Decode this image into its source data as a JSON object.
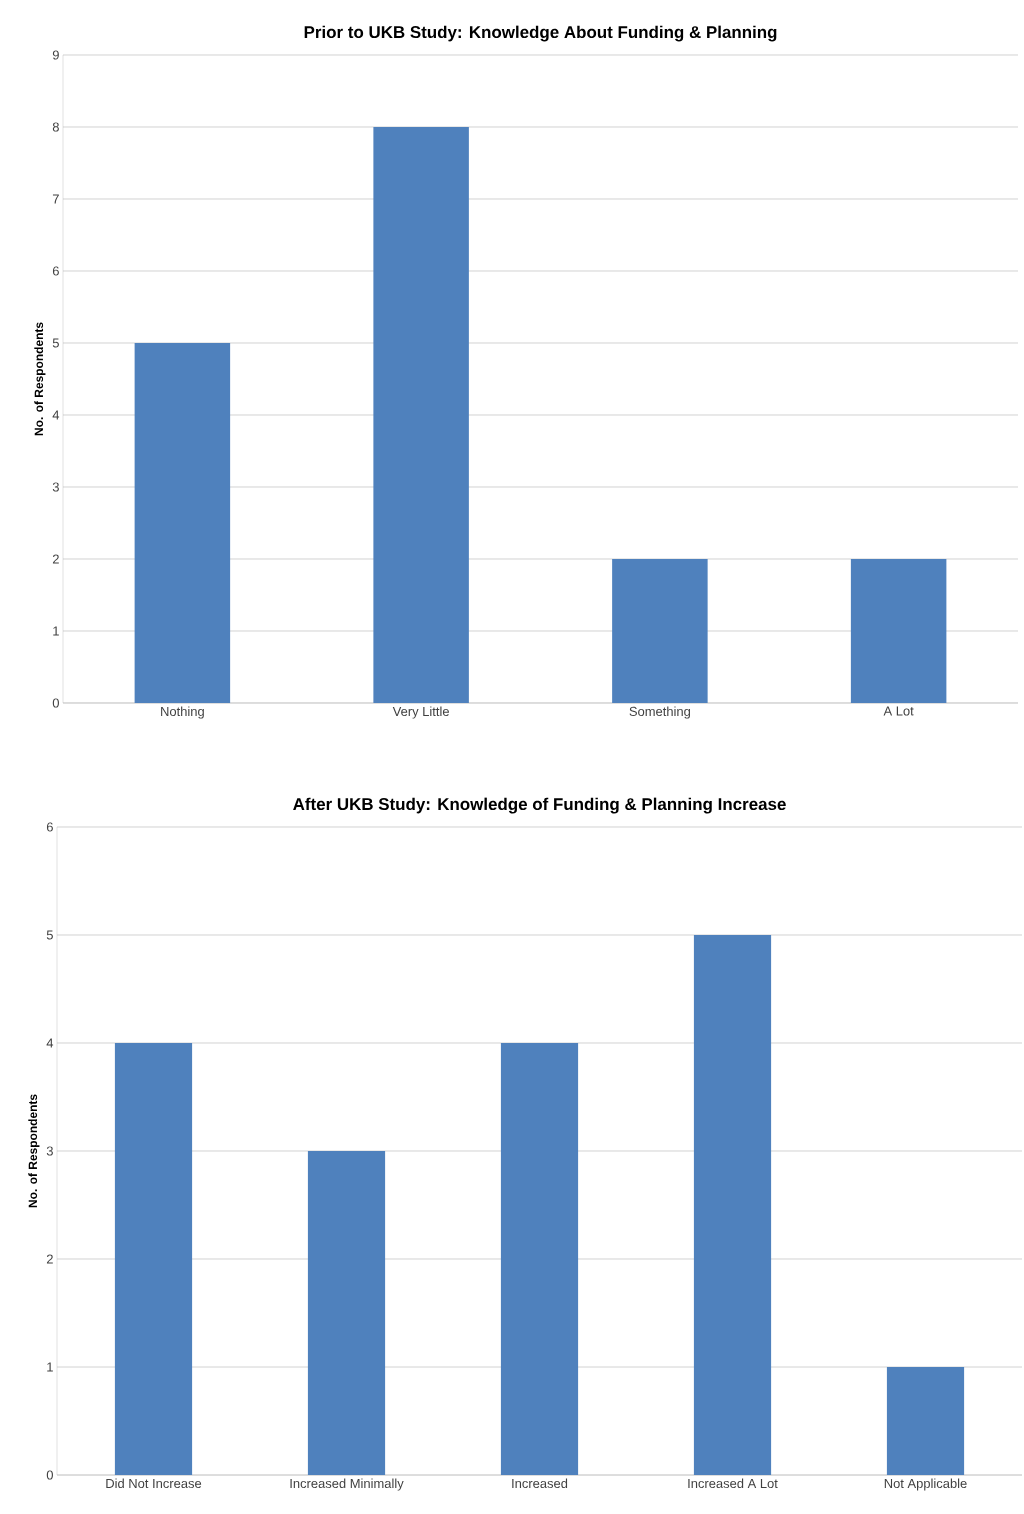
{
  "chart_data": [
    {
      "type": "bar",
      "title": "Prior to UKB Study: Knowledge About Funding & Planning",
      "ylabel": "No. of Respondents",
      "categories": [
        "Nothing",
        "Very Little",
        "Something",
        "A Lot"
      ],
      "values": [
        5,
        8,
        2,
        2
      ],
      "color": "#4f81bd",
      "ylim": [
        0,
        9
      ],
      "yticks": [
        0,
        1,
        2,
        3,
        4,
        5,
        6,
        7,
        8,
        9
      ],
      "grid": "y"
    },
    {
      "type": "bar",
      "title": "After UKB Study: Knowledge of Funding & Planning Increase",
      "ylabel": "No. of Respondents",
      "categories": [
        "Did Not Increase",
        "Increased Minimally",
        "Increased",
        "Increased A Lot",
        "Not Applicable"
      ],
      "values": [
        4,
        3,
        4,
        5,
        1
      ],
      "color": "#4f81bd",
      "ylim": [
        0,
        6
      ],
      "yticks": [
        0,
        1,
        2,
        3,
        4,
        5,
        6
      ],
      "grid": "y"
    }
  ]
}
